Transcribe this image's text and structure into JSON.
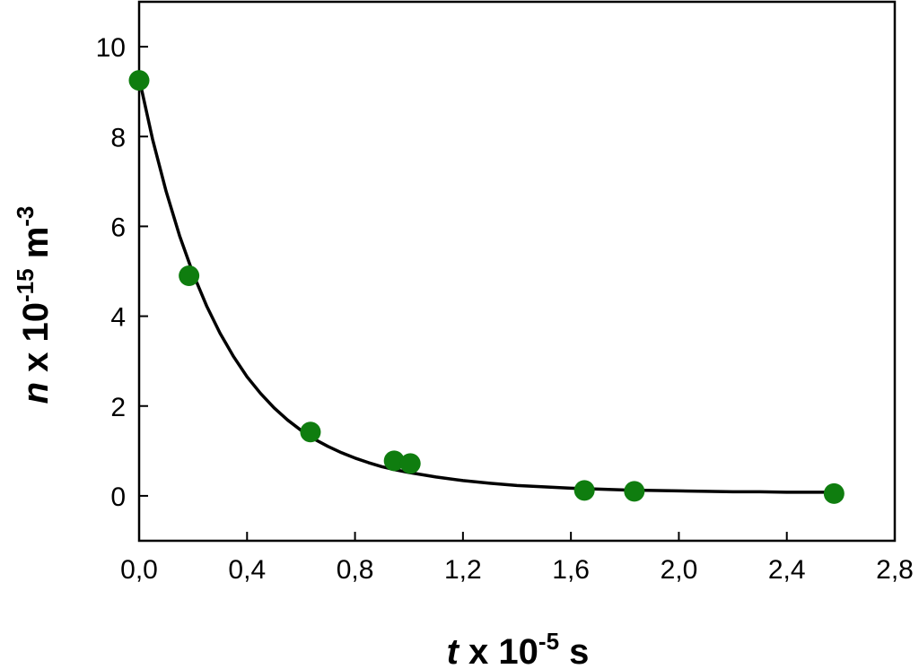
{
  "chart_data": {
    "type": "scatter",
    "xaxis": {
      "label_var": "t",
      "label_mid": " x 10",
      "label_exp": "-5",
      "label_unit": " s",
      "xlim": [
        0.0,
        2.8
      ],
      "ticks": [
        0.0,
        0.4,
        0.8,
        1.2,
        1.6,
        2.0,
        2.4,
        2.8
      ],
      "tick_labels": [
        "0,0",
        "0,4",
        "0,8",
        "1,2",
        "1,6",
        "2,0",
        "2,4",
        "2,8"
      ]
    },
    "yaxis": {
      "label_var": "n",
      "label_mid": " x 10",
      "label_exp": "-15",
      "label_unit": " m",
      "label_unit_exp": "-3",
      "ylim": [
        -1,
        11
      ],
      "ticks": [
        0,
        2,
        4,
        6,
        8,
        10
      ],
      "tick_labels": [
        "0",
        "2",
        "4",
        "6",
        "8",
        "10"
      ]
    },
    "grid": false,
    "series": [
      {
        "kind": "points",
        "color": "#0f7d0f",
        "x": [
          0.0,
          0.185,
          0.635,
          0.945,
          1.005,
          1.65,
          1.835,
          2.575
        ],
        "y": [
          9.25,
          4.9,
          1.42,
          0.78,
          0.72,
          0.12,
          0.1,
          0.05
        ]
      },
      {
        "kind": "fit-line",
        "color": "#000000",
        "x": [
          0.0,
          0.05,
          0.1,
          0.15,
          0.2,
          0.25,
          0.3,
          0.35,
          0.4,
          0.45,
          0.5,
          0.55,
          0.6,
          0.65,
          0.7,
          0.75,
          0.8,
          0.85,
          0.9,
          0.95,
          1.0,
          1.1,
          1.2,
          1.3,
          1.4,
          1.5,
          1.6,
          1.7,
          1.8,
          1.9,
          2.0,
          2.1,
          2.2,
          2.3,
          2.4,
          2.5,
          2.58
        ],
        "y": [
          9.3,
          7.94,
          6.78,
          5.79,
          4.95,
          4.23,
          3.62,
          3.1,
          2.65,
          2.28,
          1.96,
          1.69,
          1.46,
          1.26,
          1.1,
          0.96,
          0.84,
          0.74,
          0.65,
          0.58,
          0.52,
          0.42,
          0.34,
          0.28,
          0.23,
          0.2,
          0.17,
          0.15,
          0.13,
          0.12,
          0.11,
          0.1,
          0.09,
          0.09,
          0.08,
          0.08,
          0.08
        ]
      }
    ]
  }
}
